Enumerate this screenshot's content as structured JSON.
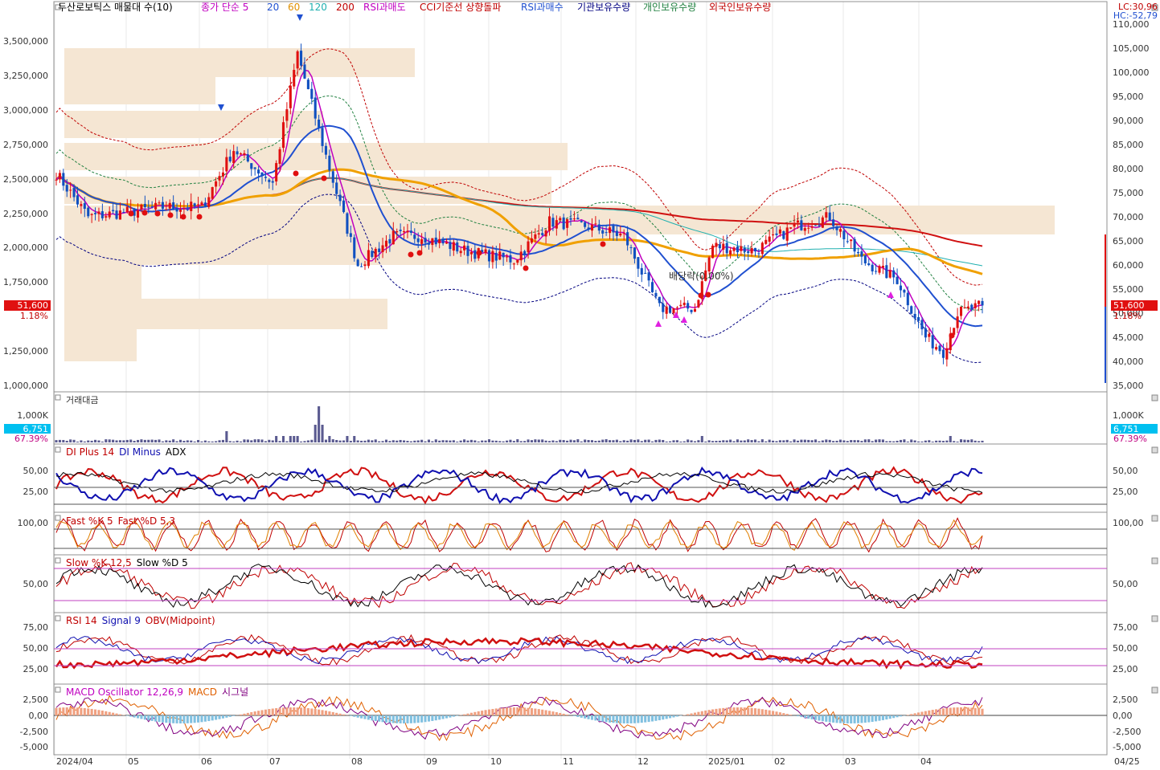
{
  "header": {
    "items": [
      {
        "label": "두산로보틱스 매물대 수(10)",
        "color": "#000000"
      },
      {
        "label": "종가 단순 5",
        "color": "#c000c0"
      },
      {
        "label": "20",
        "color": "#2050d0"
      },
      {
        "label": "60",
        "color": "#e09000"
      },
      {
        "label": "120",
        "color": "#20b0b0"
      },
      {
        "label": "200",
        "color": "#c00000"
      },
      {
        "label": "RSI과매도",
        "color": "#c000c0"
      },
      {
        "label": "CCI기준선 상향돌파",
        "color": "#c00000"
      },
      {
        "label": "RSI과매수",
        "color": "#2050d0"
      },
      {
        "label": "기관보유수량",
        "color": "#000080"
      },
      {
        "label": "개인보유수량",
        "color": "#208040"
      },
      {
        "label": "외국인보유수량",
        "color": "#c00000"
      }
    ],
    "lc": "LC:30,96",
    "hc": "HC:-52,79"
  },
  "colors": {
    "up": "#e01010",
    "down": "#1050c0",
    "ma5": "#c000c0",
    "ma20": "#2050d0",
    "ma60": "#f0a000",
    "ma120": "#20b0b0",
    "ma200": "#d01010",
    "volume_profile": "#f5e6d3",
    "volume_bar": "#5a5a90",
    "price_tag": "#e01010",
    "volume_tag": "#00c0f0"
  },
  "chart_data": [
    {
      "type": "candlestick",
      "panel": "price",
      "name": "두산로보틱스",
      "left_ticks": [
        "3,500,000",
        "3,250,000",
        "3,000,000",
        "2,750,000",
        "2,500,000",
        "2,250,000",
        "2,000,000",
        "1,750,000",
        "1,250,000",
        "1,000,000"
      ],
      "right_ticks": [
        "110,000",
        "105,000",
        "100,000",
        "95,000",
        "90,000",
        "85,000",
        "80,000",
        "75,000",
        "70,000",
        "65,000",
        "60,000",
        "55,000",
        "50,000",
        "45,000",
        "40,000",
        "35,000"
      ],
      "right_ylim": [
        35000,
        111000
      ],
      "last_price": "51,600",
      "change_pct": "1.18%",
      "annotation": "배당락(0.00%)",
      "close_series_approx": [
        {
          "x": "2024/04/01",
          "y": 79000
        },
        {
          "x": "2024/04/15",
          "y": 70000
        },
        {
          "x": "2024/05/01",
          "y": 71000
        },
        {
          "x": "2024/05/15",
          "y": 72000
        },
        {
          "x": "2024/06/01",
          "y": 72000
        },
        {
          "x": "2024/06/15",
          "y": 84000
        },
        {
          "x": "2024/07/01",
          "y": 77000
        },
        {
          "x": "2024/07/12",
          "y": 104000
        },
        {
          "x": "2024/07/25",
          "y": 80000
        },
        {
          "x": "2024/08/05",
          "y": 60000
        },
        {
          "x": "2024/08/20",
          "y": 66000
        },
        {
          "x": "2024/09/01",
          "y": 66000
        },
        {
          "x": "2024/09/20",
          "y": 63000
        },
        {
          "x": "2024/10/10",
          "y": 61000
        },
        {
          "x": "2024/10/25",
          "y": 69000
        },
        {
          "x": "2024/11/10",
          "y": 68000
        },
        {
          "x": "2024/11/25",
          "y": 66000
        },
        {
          "x": "2024/12/10",
          "y": 51000
        },
        {
          "x": "2024/12/25",
          "y": 51000
        },
        {
          "x": "2025/01/02",
          "y": 64000
        },
        {
          "x": "2025/01/20",
          "y": 63000
        },
        {
          "x": "2025/02/05",
          "y": 68000
        },
        {
          "x": "2025/02/20",
          "y": 70000
        },
        {
          "x": "2025/03/05",
          "y": 61000
        },
        {
          "x": "2025/03/20",
          "y": 57000
        },
        {
          "x": "2025/04/01",
          "y": 45000
        },
        {
          "x": "2025/04/08",
          "y": 42000
        },
        {
          "x": "2025/04/15",
          "y": 50000
        },
        {
          "x": "2025/04/25",
          "y": 51600
        }
      ]
    },
    {
      "type": "bar",
      "panel": "volume",
      "name": "거래대금",
      "ticks": [
        "1,000K"
      ],
      "last_value": "6,751",
      "change_pct": "67.39%"
    },
    {
      "type": "line",
      "panel": "dmi",
      "series_names": [
        "DI Plus 14",
        "DI Minus",
        "ADX"
      ],
      "ticks": [
        "50,00",
        "25,00"
      ],
      "ylim": [
        0,
        75
      ]
    },
    {
      "type": "line",
      "panel": "fast_stoch",
      "series_names": [
        "Fast %K 5",
        "Fast %D 5,3"
      ],
      "ticks": [
        "100,00"
      ],
      "ylim": [
        0,
        100
      ]
    },
    {
      "type": "line",
      "panel": "slow_stoch",
      "series_names": [
        "Slow %K 12,5",
        "Slow %D 5"
      ],
      "ticks": [
        "50,00"
      ],
      "ylim": [
        0,
        100
      ]
    },
    {
      "type": "line",
      "panel": "rsi",
      "series_names": [
        "RSI 14",
        "Signal 9",
        "OBV(Midpoint)"
      ],
      "ticks": [
        "75,00",
        "50,00",
        "25,00"
      ],
      "ylim": [
        0,
        100
      ]
    },
    {
      "type": "line",
      "panel": "macd",
      "series_names": [
        "MACD Oscillator 12,26,9",
        "MACD",
        "시그널"
      ],
      "ticks": [
        "2,500",
        "0,00",
        "-2,500",
        "-5,000"
      ],
      "ylim": [
        -5500,
        3500
      ]
    }
  ],
  "x_axis": {
    "labels": [
      "2024/04",
      "05",
      "06",
      "07",
      "08",
      "09",
      "10",
      "11",
      "12",
      "2025/01",
      "02",
      "03",
      "04"
    ],
    "right_label": "04/25"
  }
}
